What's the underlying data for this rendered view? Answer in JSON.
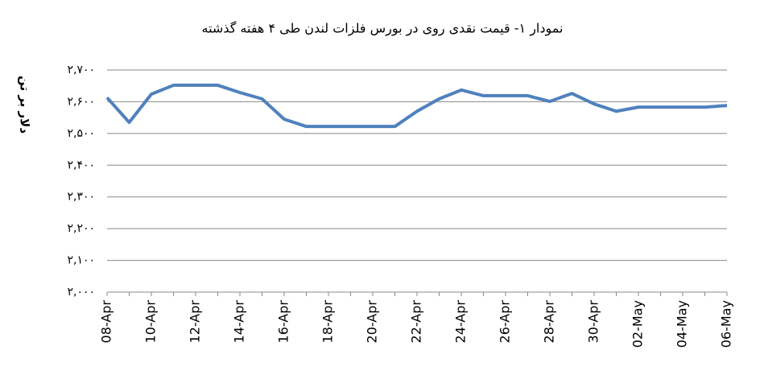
{
  "chart_data": {
    "type": "line",
    "title": "نمودار ۱- قیمت نقدی روی  در بورس فلزات لندن طی ۴ هفته گذشته",
    "y_label": "دلار بر تن",
    "categories": [
      "08-Apr",
      null,
      "10-Apr",
      null,
      "12-Apr",
      null,
      "14-Apr",
      null,
      "16-Apr",
      null,
      "18-Apr",
      null,
      "20-Apr",
      null,
      "22-Apr",
      null,
      "24-Apr",
      null,
      "26-Apr",
      null,
      "28-Apr",
      null,
      "30-Apr",
      null,
      "02-May",
      null,
      "04-May",
      null,
      "06-May"
    ],
    "values": [
      2613,
      2535,
      2624,
      2652,
      2652,
      2652,
      2629,
      2609,
      2545,
      2522,
      2522,
      2522,
      2522,
      2522,
      2570,
      2609,
      2637,
      2619,
      2619,
      2619,
      2601,
      2626,
      2593,
      2570,
      2583,
      2583,
      2583,
      2583,
      2588
    ],
    "color": "#4f81bd",
    "ylim": [
      2000,
      2700
    ],
    "yticks": [
      {
        "value": 2000,
        "label": "۲,۰۰۰"
      },
      {
        "value": 2100,
        "label": "۲,۱۰۰"
      },
      {
        "value": 2200,
        "label": "۲,۲۰۰"
      },
      {
        "value": 2300,
        "label": "۲,۳۰۰"
      },
      {
        "value": 2400,
        "label": "۲,۴۰۰"
      },
      {
        "value": 2500,
        "label": "۲,۵۰۰"
      },
      {
        "value": 2600,
        "label": "۲,۶۰۰"
      },
      {
        "value": 2700,
        "label": "۲,۷۰۰"
      }
    ],
    "grid": true
  }
}
